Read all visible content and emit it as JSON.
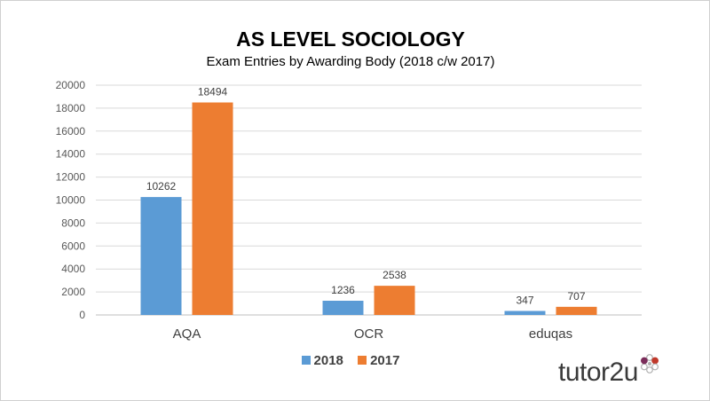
{
  "chart_data": {
    "type": "bar",
    "title": "AS LEVEL SOCIOLOGY",
    "subtitle": "Exam Entries by Awarding Body (2018 c/w 2017)",
    "categories": [
      "AQA",
      "OCR",
      "eduqas"
    ],
    "series": [
      {
        "name": "2018",
        "values": [
          10262,
          1236,
          347
        ],
        "color": "#5b9bd5"
      },
      {
        "name": "2017",
        "values": [
          18494,
          2538,
          707
        ],
        "color": "#ed7d31"
      }
    ],
    "ylim": [
      0,
      20000
    ],
    "yticks": [
      0,
      2000,
      4000,
      6000,
      8000,
      10000,
      12000,
      14000,
      16000,
      18000,
      20000
    ],
    "grid": true,
    "legend_position": "bottom",
    "xlabel": "",
    "ylabel": ""
  },
  "branding": {
    "logo_text": "tutor2u",
    "logo_icon": "flower-icon"
  }
}
